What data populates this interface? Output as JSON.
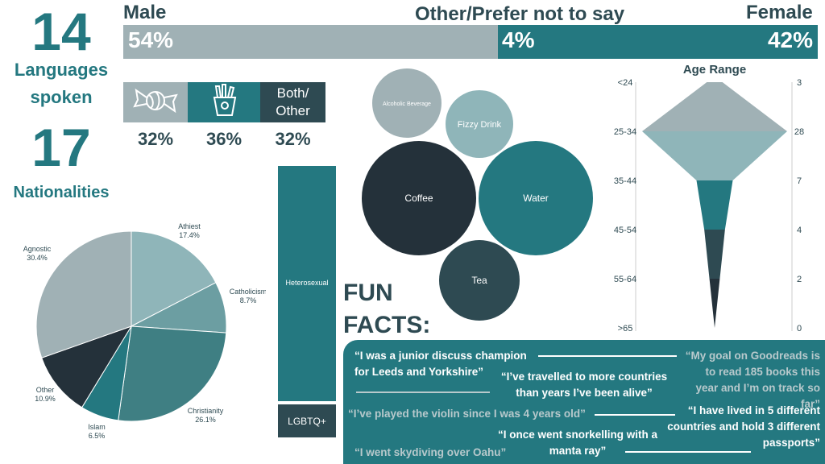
{
  "stats": {
    "languages_number": "14",
    "languages_label_1": "Languages",
    "languages_label_2": "spoken",
    "nationalities_number": "17",
    "nationalities_label": "Nationalities"
  },
  "gender": {
    "male_label": "Male",
    "other_label": "Other/Prefer not to say",
    "female_label": "Female",
    "male_value": "54%",
    "other_value": "4%",
    "female_value": "42%"
  },
  "snacks": {
    "both_label_1": "Both/",
    "both_label_2": "Other",
    "sweets_pct": "32%",
    "chips_pct": "36%",
    "both_pct": "32%"
  },
  "drinks": {
    "alcohol": "Alcoholic Beverage",
    "fizzy": "Fizzy Drink",
    "coffee": "Coffee",
    "water": "Water",
    "tea": "Tea"
  },
  "orientation": {
    "hetero": "Heterosexual",
    "lgbtq": "LGBTQ+"
  },
  "fun_facts": {
    "title_1": "FUN",
    "title_2": "FACTS:",
    "f1_a": "“I was a junior discuss champion",
    "f1_b": "for Leeds and Yorkshire”",
    "f2_a": "“My goal on Goodreads is",
    "f2_b": "to read 185 books this",
    "f2_c": "year and I’m on track so far”",
    "f3_a": "“I’ve travelled to more countries",
    "f3_b": "than years I’ve been alive”",
    "f4": "“I’ve played the violin since I was 4 years old”",
    "f5_a": "“I have lived in 5 different",
    "f5_b": "countries and hold 3 different",
    "f5_c": "passports”",
    "f6_a": "“I once went snorkelling with a",
    "f6_b": "manta ray”",
    "f7": "“I went skydiving over Oahu”"
  },
  "colors": {
    "teal": "#247880",
    "dark": "#24313a",
    "grey": "#a0b1b5",
    "light_teal": "#8fb5b9",
    "mid_teal": "#6c9ea2",
    "slate": "#2e4a52"
  },
  "chart_data": [
    {
      "type": "bar",
      "series": [
        {
          "name": "Male",
          "values": [
            54
          ]
        },
        {
          "name": "Other/Prefer not to say",
          "values": [
            4
          ]
        },
        {
          "name": "Female",
          "values": [
            42
          ]
        }
      ]
    },
    {
      "type": "bar",
      "categories": [
        "sweets-icon",
        "chips-icon",
        "Both/Other"
      ],
      "values": [
        32,
        36,
        32
      ]
    },
    {
      "type": "pie",
      "labels": [
        "Athiest",
        "Catholicism",
        "Christianity",
        "Islam",
        "Other",
        "Agnostic"
      ],
      "values": [
        17.4,
        8.7,
        26.1,
        6.5,
        10.9,
        30.4
      ],
      "value_labels": [
        "17.4%",
        "8.7%",
        "26.1%",
        "6.5%",
        "10.9%",
        "30.4%"
      ]
    },
    {
      "type": "bar",
      "categories": [
        "Heterosexual",
        "LGBTQ+"
      ],
      "values": [
        87,
        13
      ]
    },
    {
      "type": "scatter",
      "categories": [
        "Alcoholic Beverage",
        "Fizzy Drink",
        "Coffee",
        "Water",
        "Tea"
      ],
      "values": [
        10,
        9,
        33,
        28,
        13
      ]
    },
    {
      "type": "area",
      "title": "Age Range",
      "categories": [
        "<24",
        "25-34",
        "35-44",
        "45-54",
        "55-64",
        ">65"
      ],
      "values": [
        3,
        28,
        7,
        4,
        2,
        0
      ]
    }
  ]
}
